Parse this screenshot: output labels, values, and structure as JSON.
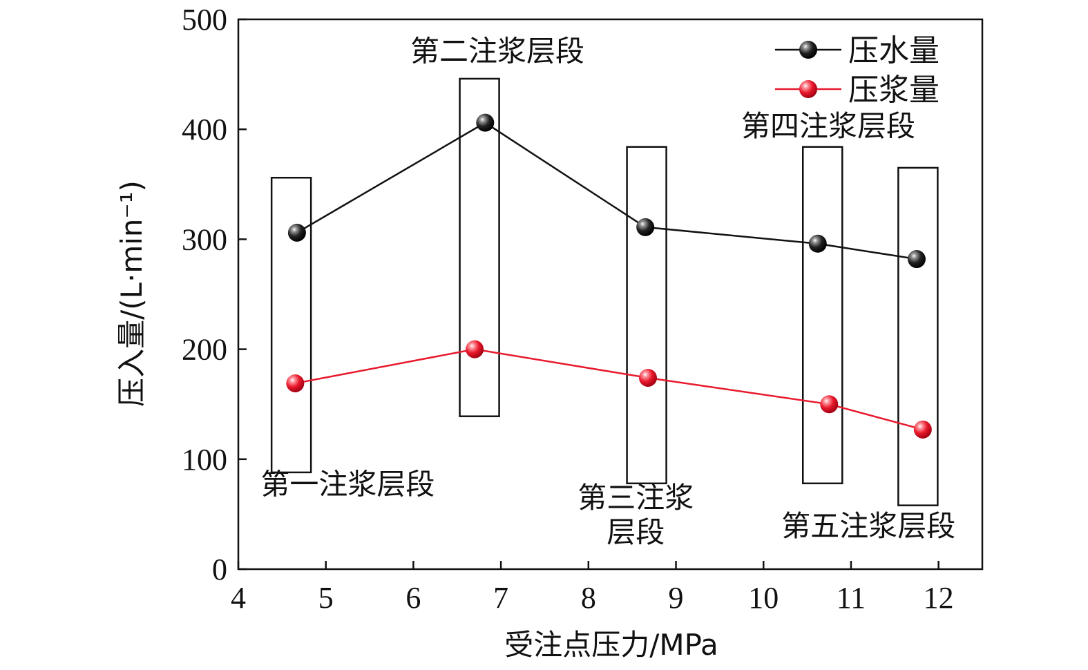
{
  "chart_data": {
    "type": "line",
    "xlabel": "受注点压力/MPa",
    "ylabel": "压入量/(L·min⁻¹)",
    "xlim": [
      4,
      12.5
    ],
    "ylim": [
      0,
      500
    ],
    "x_ticks": [
      4,
      5,
      6,
      7,
      8,
      9,
      10,
      11,
      12
    ],
    "y_ticks": [
      0,
      100,
      200,
      300,
      400,
      500
    ],
    "legend_position": "top-right",
    "series": [
      {
        "name": "压水量",
        "color": "#111111",
        "points": [
          [
            4.67,
            306
          ],
          [
            6.82,
            406
          ],
          [
            8.65,
            311
          ],
          [
            10.62,
            296
          ],
          [
            11.75,
            282
          ]
        ]
      },
      {
        "name": "压浆量",
        "color": "#e8192c",
        "points": [
          [
            4.65,
            169
          ],
          [
            6.7,
            200
          ],
          [
            8.68,
            174
          ],
          [
            10.75,
            150
          ],
          [
            11.82,
            127
          ]
        ]
      }
    ],
    "boxes": [
      {
        "label": "第一注浆层段",
        "x_range": [
          4.38,
          4.83
        ],
        "y_range": [
          88,
          356
        ]
      },
      {
        "label": "第二注浆层段",
        "x_range": [
          6.53,
          6.98
        ],
        "y_range": [
          139,
          446
        ]
      },
      {
        "label": "第三注浆层段",
        "x_range": [
          8.44,
          8.89
        ],
        "y_range": [
          78,
          384
        ]
      },
      {
        "label": "第四注浆层段",
        "x_range": [
          10.45,
          10.9
        ],
        "y_range": [
          78,
          384
        ]
      },
      {
        "label": "第五注浆层段",
        "x_range": [
          11.54,
          11.99
        ],
        "y_range": [
          58,
          365
        ]
      }
    ],
    "annotations": [
      {
        "lines": [
          "第一注浆层段"
        ],
        "x": 5.25,
        "y": 68
      },
      {
        "lines": [
          "第二注浆层段"
        ],
        "x": 6.96,
        "y": 462
      },
      {
        "lines": [
          "第三注浆",
          "层段"
        ],
        "x": 8.54,
        "y": 56
      },
      {
        "lines": [
          "第四注浆层段"
        ],
        "x": 10.74,
        "y": 394
      },
      {
        "lines": [
          "第五注浆层段"
        ],
        "x": 11.2,
        "y": 30
      }
    ]
  }
}
